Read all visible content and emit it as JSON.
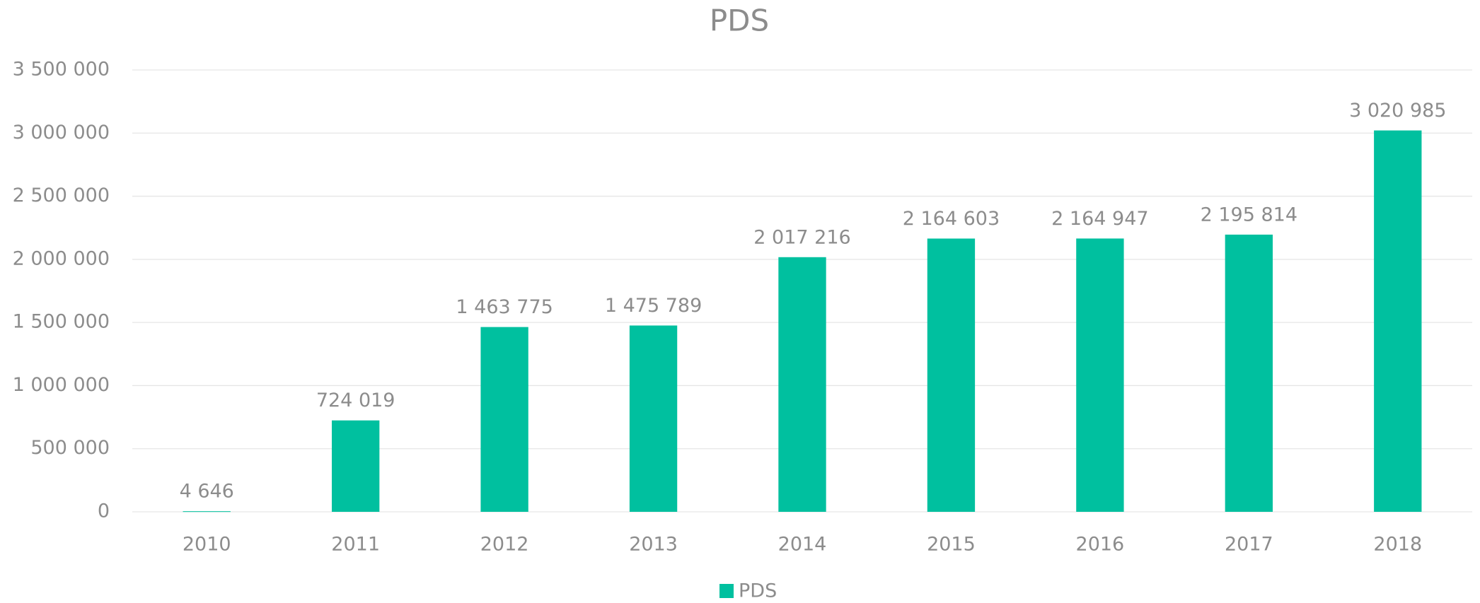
{
  "chart_data": {
    "type": "bar",
    "title": "PDS",
    "categories": [
      "2010",
      "2011",
      "2012",
      "2013",
      "2014",
      "2015",
      "2016",
      "2017",
      "2018"
    ],
    "series": [
      {
        "name": "PDS",
        "color": "#00c09f",
        "values": [
          4646,
          724019,
          1463775,
          1475789,
          2017216,
          2164603,
          2164947,
          2195814,
          3020985
        ],
        "value_labels": [
          "4 646",
          "724 019",
          "1 463 775",
          "1 475 789",
          "2 017 216",
          "2 164 603",
          "2 164 947",
          "2 195 814",
          "3 020 985"
        ]
      }
    ],
    "ylim": [
      0,
      3500000
    ],
    "yticks": [
      0,
      {
        "value": 500000,
        "label": "500 000"
      },
      {
        "value": 1000000,
        "label": "1 000 000"
      },
      {
        "value": 1500000,
        "label": "1 500 000"
      },
      {
        "value": 2000000,
        "label": "2 000 000"
      },
      {
        "value": 2500000,
        "label": "2 500 000"
      },
      {
        "value": 3000000,
        "label": "3 000 000"
      },
      {
        "value": 3500000,
        "label": "3 500 000"
      }
    ],
    "grid": true,
    "legend": "bottom"
  }
}
